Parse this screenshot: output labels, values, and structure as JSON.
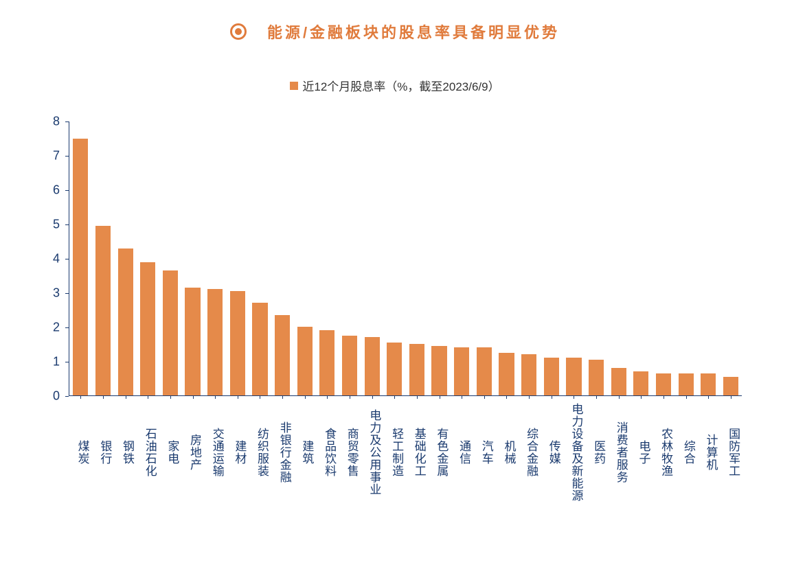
{
  "chart": {
    "type": "bar",
    "title": "能源/金融板块的股息率具备明显优势",
    "title_color": "#e07b3c",
    "title_fontsize": 22,
    "bullet_color": "#e07b3c",
    "legend": {
      "label": "近12个月股息率（%，截至2023/6/9）",
      "swatch_color": "#e58a4a",
      "fontsize": 17,
      "text_color": "#333333"
    },
    "background_color": "#ffffff",
    "axis_color": "#1a3a6e",
    "label_fontsize": 17,
    "ylim": [
      0,
      8
    ],
    "ytick_step": 1,
    "yticks": [
      0,
      1,
      2,
      3,
      4,
      5,
      6,
      7,
      8
    ],
    "bar_color": "#e58a4a",
    "bar_width": 0.68,
    "categories": [
      "煤炭",
      "银行",
      "钢铁",
      "石油石化",
      "家电",
      "房地产",
      "交通运输",
      "建材",
      "纺织服装",
      "非银行金融",
      "建筑",
      "食品饮料",
      "商贸零售",
      "电力及公用事业",
      "轻工制造",
      "基础化工",
      "有色金属",
      "通信",
      "汽车",
      "机械",
      "综合金融",
      "传媒",
      "电力设备及新能源",
      "医药",
      "消费者服务",
      "电子",
      "农林牧渔",
      "综合",
      "计算机",
      "国防军工"
    ],
    "values": [
      7.5,
      4.95,
      4.3,
      3.9,
      3.65,
      3.15,
      3.1,
      3.05,
      2.7,
      2.35,
      2.0,
      1.9,
      1.75,
      1.7,
      1.55,
      1.5,
      1.45,
      1.4,
      1.4,
      1.25,
      1.2,
      1.1,
      1.1,
      1.05,
      0.8,
      0.7,
      0.65,
      0.65,
      0.65,
      0.55
    ]
  }
}
